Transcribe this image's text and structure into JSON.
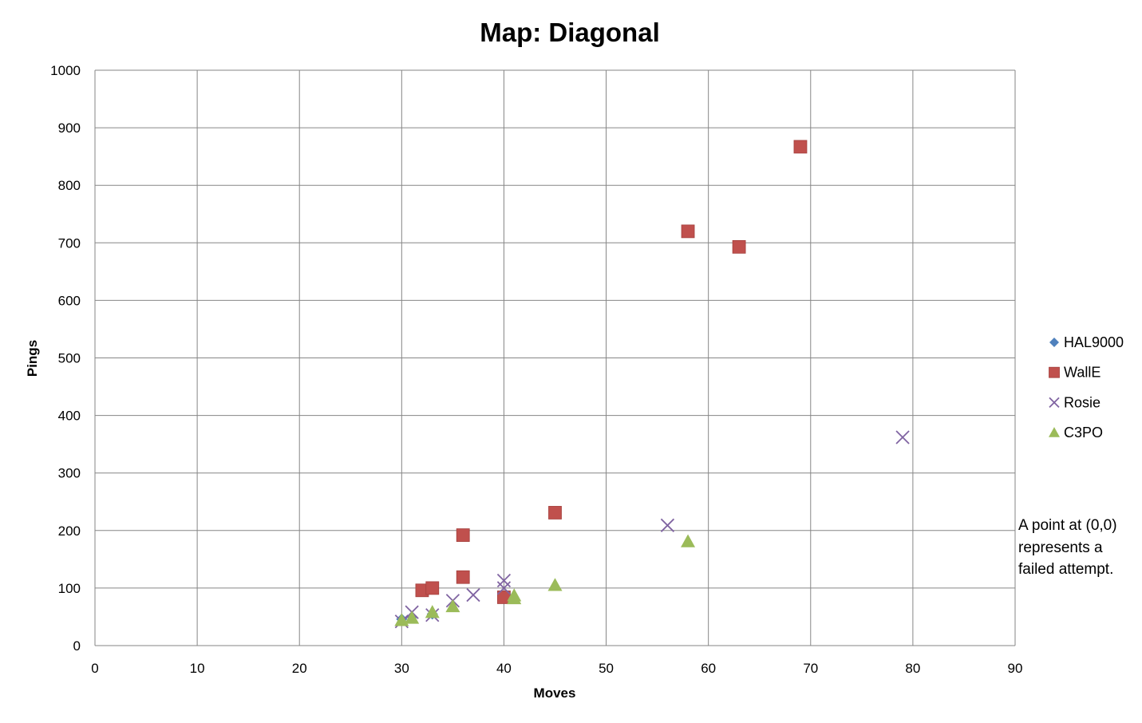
{
  "chart_data": {
    "type": "scatter",
    "title": "Map: Diagonal",
    "xlabel": "Moves",
    "ylabel": "Pings",
    "xlim": [
      0,
      90
    ],
    "ylim": [
      0,
      1000
    ],
    "x_ticks": [
      "0",
      "10",
      "20",
      "30",
      "40",
      "50",
      "60",
      "70",
      "80",
      "90"
    ],
    "y_ticks": [
      "0",
      "100",
      "200",
      "300",
      "400",
      "500",
      "600",
      "700",
      "800",
      "900",
      "1000"
    ],
    "grid": true,
    "legend_position": "right",
    "series": [
      {
        "name": "HAL9000",
        "marker": "diamond",
        "color": "#4F81BD",
        "points": [
          [
            30,
            46
          ],
          [
            31,
            50
          ],
          [
            33,
            55
          ]
        ]
      },
      {
        "name": "WallE",
        "marker": "square",
        "color": "#C0504D",
        "points": [
          [
            32,
            96
          ],
          [
            33,
            100
          ],
          [
            36,
            192
          ],
          [
            36,
            119
          ],
          [
            40,
            84
          ],
          [
            45,
            231
          ],
          [
            58,
            720
          ],
          [
            63,
            693
          ],
          [
            69,
            867
          ]
        ]
      },
      {
        "name": "Rosie",
        "marker": "x",
        "color": "#8064A2",
        "points": [
          [
            30,
            42
          ],
          [
            31,
            58
          ],
          [
            33,
            53
          ],
          [
            35,
            78
          ],
          [
            37,
            88
          ],
          [
            40,
            113
          ],
          [
            40,
            100
          ],
          [
            56,
            209
          ],
          [
            79,
            362
          ]
        ]
      },
      {
        "name": "C3PO",
        "marker": "triangle",
        "color": "#9BBB59",
        "points": [
          [
            30,
            44
          ],
          [
            31,
            48
          ],
          [
            33,
            58
          ],
          [
            35,
            68
          ],
          [
            41,
            87
          ],
          [
            41,
            82
          ],
          [
            45,
            105
          ],
          [
            58,
            181
          ]
        ]
      }
    ],
    "annotation": [
      "A point at (0,0)",
      "represents a",
      "failed attempt."
    ]
  }
}
